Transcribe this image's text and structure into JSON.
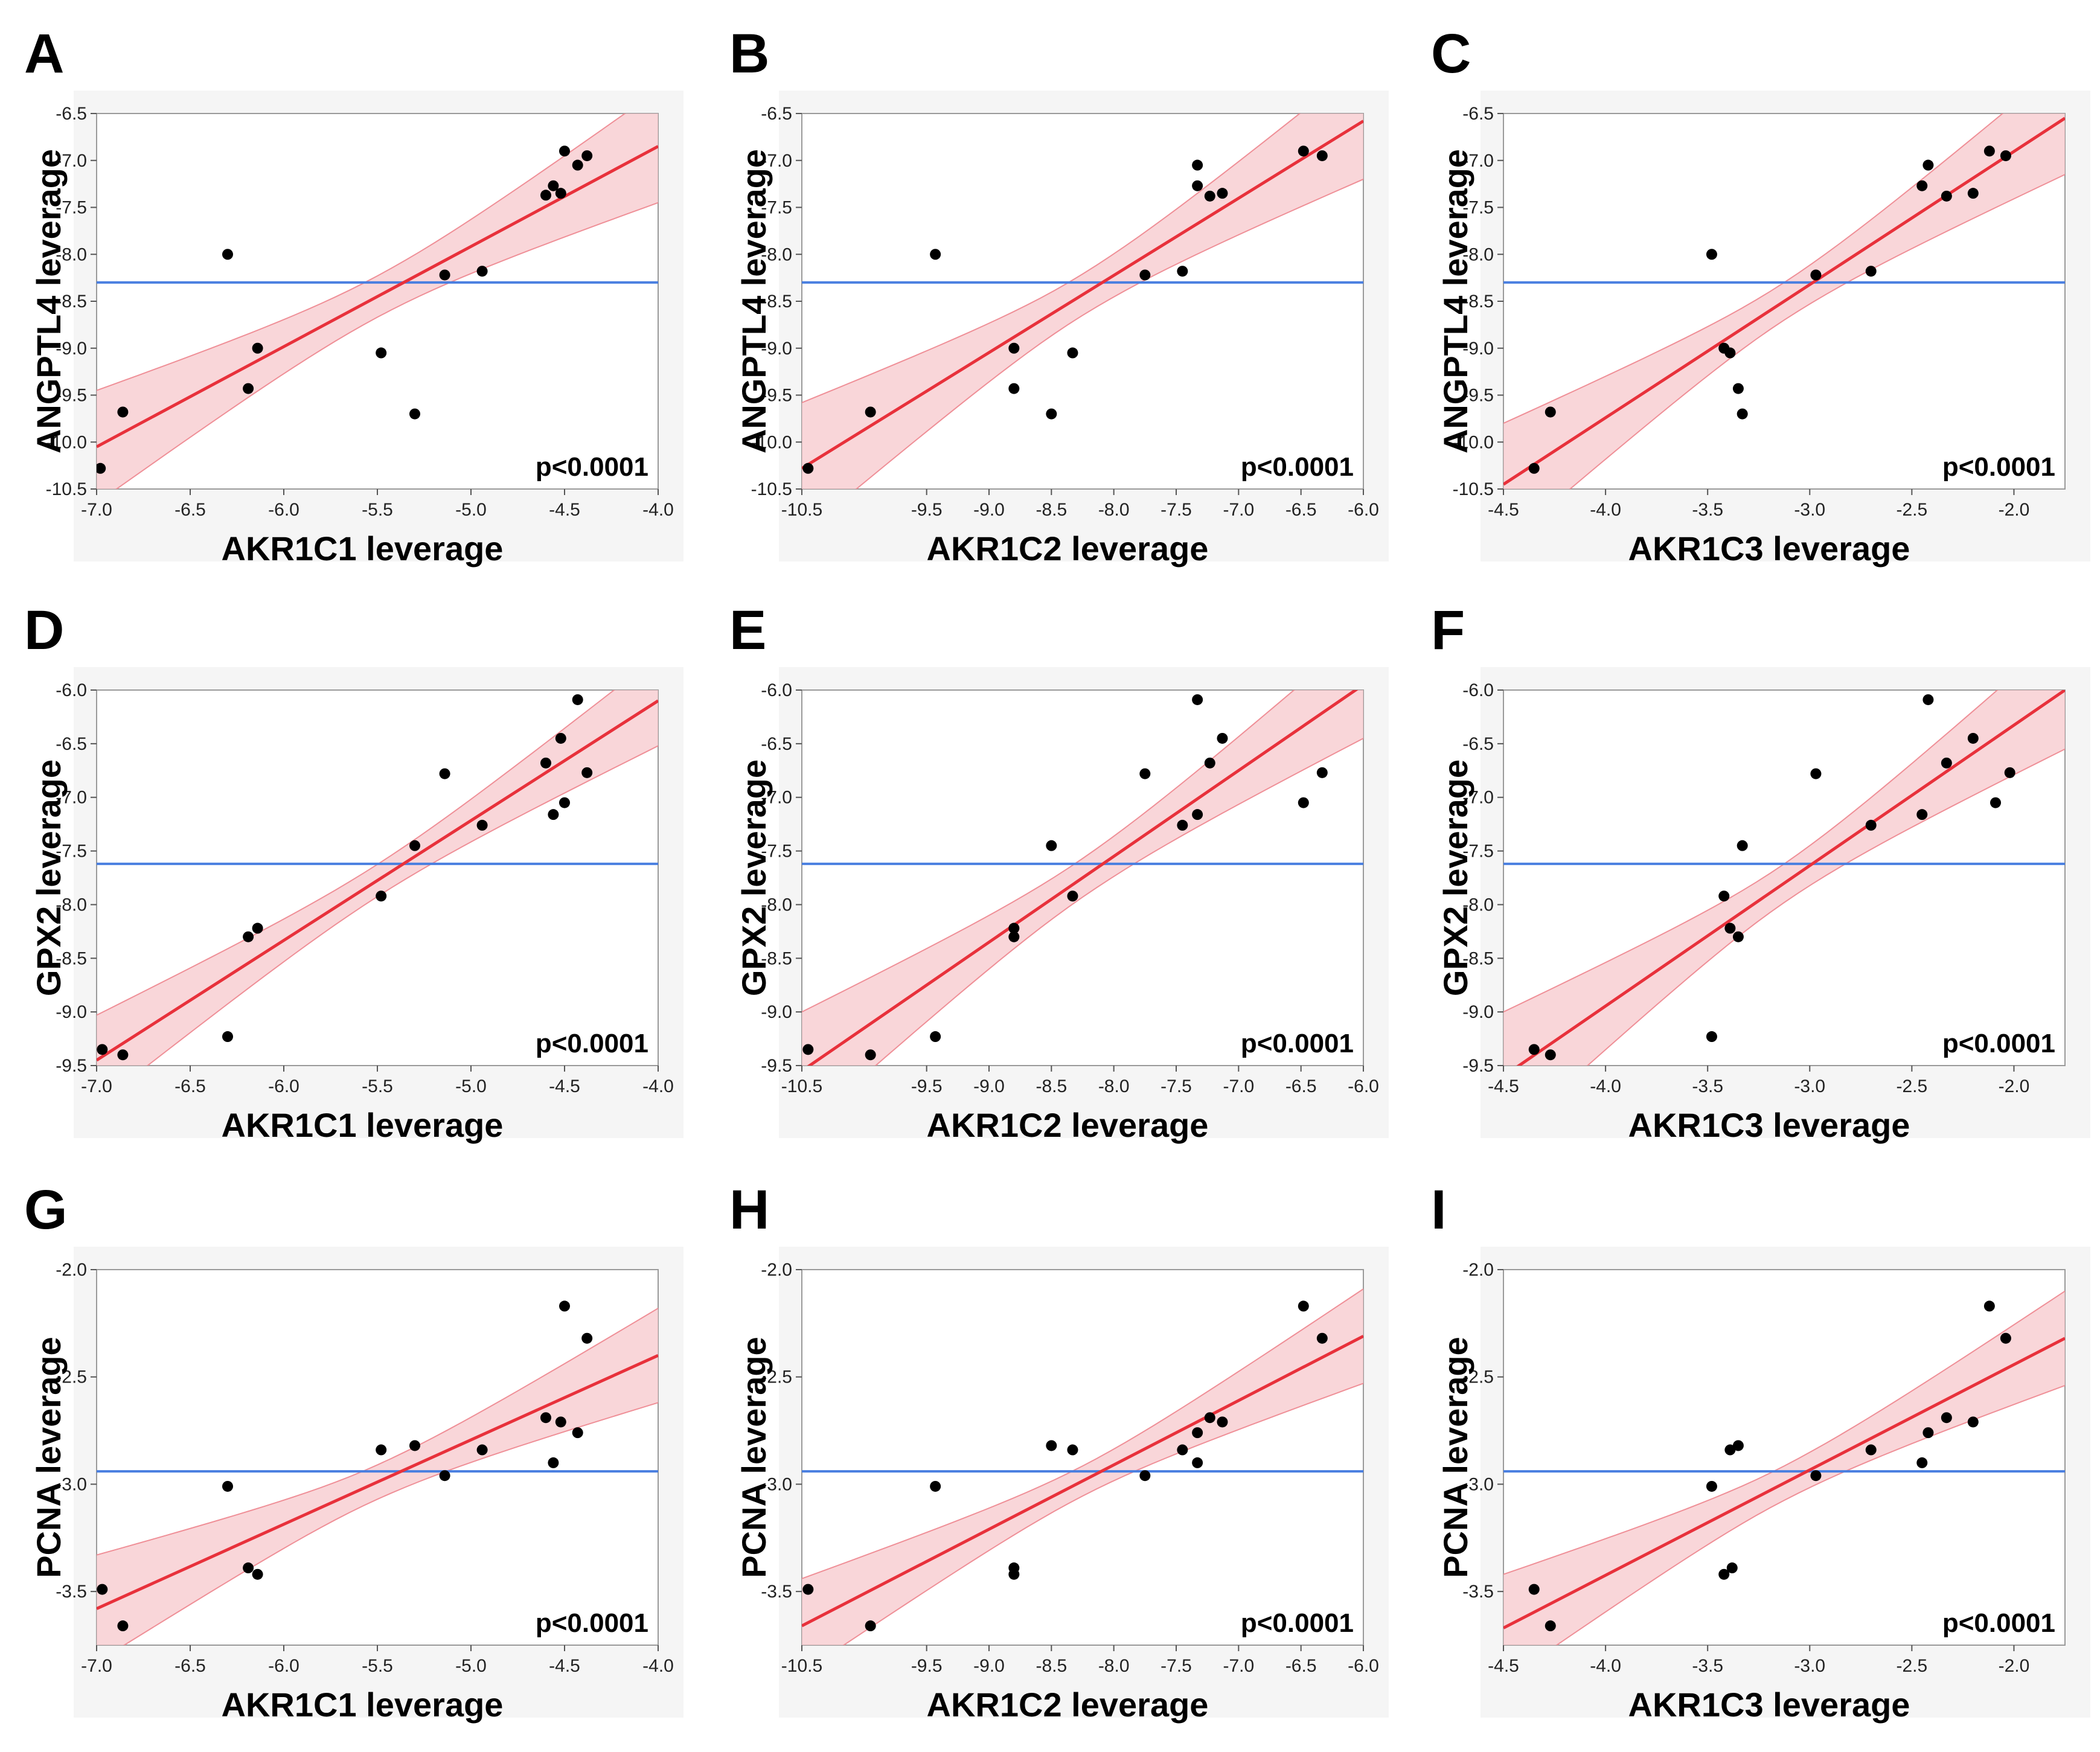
{
  "colors": {
    "fit_line": "#e8313b",
    "confidence_band": "#f7c8cc",
    "confidence_band_edge": "#ef8f97",
    "mean_line": "#4a7fe0",
    "points": "#000000",
    "frame": "#f5f5f5"
  },
  "chart_data": [
    {
      "panel": "A",
      "type": "scatter",
      "xlabel": "AKR1C1 leverage",
      "ylabel": "ANGPTL4 leverage",
      "xlim": [
        -7.0,
        -4.0
      ],
      "ylim": [
        -10.5,
        -6.5
      ],
      "xticks": [
        -7.0,
        -6.5,
        -6.0,
        -5.5,
        -5.0,
        -4.5,
        -4.0
      ],
      "yticks": [
        -6.5,
        -7.0,
        -7.5,
        -8.0,
        -8.5,
        -9.0,
        -9.5,
        -10.0,
        -10.5
      ],
      "x": [
        -6.98,
        -6.86,
        -6.3,
        -6.19,
        -6.14,
        -5.48,
        -5.3,
        -5.14,
        -4.94,
        -4.6,
        -4.56,
        -4.52,
        -4.5,
        -4.43,
        -4.38
      ],
      "y": [
        -10.28,
        -9.68,
        -8.0,
        -9.43,
        -9.0,
        -9.05,
        -9.7,
        -8.22,
        -8.18,
        -7.37,
        -7.27,
        -7.35,
        -6.9,
        -7.05,
        -6.95
      ],
      "fit": [
        [
          -7.0,
          -10.05
        ],
        [
          -4.0,
          -6.85
        ]
      ],
      "band_half": [
        0.6,
        0.22,
        0.6
      ],
      "mean_y": -8.3,
      "pvalue": "p<0.0001"
    },
    {
      "panel": "B",
      "type": "scatter",
      "xlabel": "AKR1C2 leverage",
      "ylabel": "ANGPTL4 leverage",
      "xlim": [
        -10.5,
        -6.0
      ],
      "ylim": [
        -10.5,
        -6.5
      ],
      "xticks": [
        -10.5,
        -9.5,
        -9.0,
        -8.5,
        -8.0,
        -7.5,
        -7.0,
        -6.5,
        -6.0
      ],
      "yticks": [
        -6.5,
        -7.0,
        -7.5,
        -8.0,
        -8.5,
        -9.0,
        -9.5,
        -10.0,
        -10.5
      ],
      "x": [
        -10.45,
        -9.95,
        -9.43,
        -8.8,
        -8.8,
        -8.5,
        -8.33,
        -7.75,
        -7.45,
        -7.33,
        -7.33,
        -7.23,
        -7.13,
        -6.48,
        -6.33
      ],
      "y": [
        -10.28,
        -9.68,
        -8.0,
        -9.0,
        -9.43,
        -9.7,
        -9.05,
        -8.22,
        -8.18,
        -7.05,
        -7.27,
        -7.38,
        -7.35,
        -6.9,
        -6.95
      ],
      "fit": [
        [
          -10.5,
          -10.28
        ],
        [
          -6.0,
          -6.58
        ]
      ],
      "band_half": [
        0.7,
        0.22,
        0.62
      ],
      "mean_y": -8.3,
      "pvalue": "p<0.0001"
    },
    {
      "panel": "C",
      "type": "scatter",
      "xlabel": "AKR1C3 leverage",
      "ylabel": "ANGPTL4  leverage",
      "xlim": [
        -4.5,
        -1.75
      ],
      "ylim": [
        -10.5,
        -6.5
      ],
      "xticks": [
        -4.5,
        -4.0,
        -3.5,
        -3.0,
        -2.5,
        -2.0
      ],
      "yticks": [
        -6.5,
        -7.0,
        -7.5,
        -8.0,
        -8.5,
        -9.0,
        -9.5,
        -10.0,
        -10.5
      ],
      "x": [
        -4.35,
        -4.27,
        -3.48,
        -3.42,
        -3.39,
        -3.35,
        -3.33,
        -2.97,
        -2.7,
        -2.45,
        -2.42,
        -2.33,
        -2.2,
        -2.12,
        -2.04
      ],
      "y": [
        -10.28,
        -9.68,
        -8.0,
        -9.0,
        -9.05,
        -9.43,
        -9.7,
        -8.22,
        -8.18,
        -7.27,
        -7.05,
        -7.38,
        -7.35,
        -6.9,
        -6.95
      ],
      "fit": [
        [
          -4.5,
          -10.45
        ],
        [
          -1.75,
          -6.55
        ]
      ],
      "band_half": [
        0.65,
        0.2,
        0.6
      ],
      "mean_y": -8.3,
      "pvalue": "p<0.0001"
    },
    {
      "panel": "D",
      "type": "scatter",
      "xlabel": "AKR1C1 leverage",
      "ylabel": "GPX2 leverage",
      "xlim": [
        -7.0,
        -4.0
      ],
      "ylim": [
        -9.5,
        -6.0
      ],
      "xticks": [
        -7.0,
        -6.5,
        -6.0,
        -5.5,
        -5.0,
        -4.5,
        -4.0
      ],
      "yticks": [
        -6.0,
        -6.5,
        -7.0,
        -7.5,
        -8.0,
        -8.5,
        -9.0,
        -9.5
      ],
      "x": [
        -6.97,
        -6.86,
        -6.3,
        -6.19,
        -6.14,
        -5.48,
        -5.3,
        -5.14,
        -4.94,
        -4.6,
        -4.56,
        -4.52,
        -4.5,
        -4.43,
        -4.38
      ],
      "y": [
        -9.35,
        -9.4,
        -9.23,
        -8.3,
        -8.22,
        -7.92,
        -7.45,
        -6.78,
        -7.26,
        -6.68,
        -7.16,
        -6.45,
        -7.05,
        -6.09,
        -6.77
      ],
      "fit": [
        [
          -7.0,
          -9.45
        ],
        [
          -4.0,
          -6.1
        ]
      ],
      "band_half": [
        0.42,
        0.15,
        0.42
      ],
      "mean_y": -7.62,
      "pvalue": "p<0.0001"
    },
    {
      "panel": "E",
      "type": "scatter",
      "xlabel": "AKR1C2 leverage",
      "ylabel": "GPX2 leverage",
      "xlim": [
        -10.5,
        -6.0
      ],
      "ylim": [
        -9.5,
        -6.0
      ],
      "xticks": [
        -10.5,
        -9.5,
        -9.0,
        -8.5,
        -8.0,
        -7.5,
        -7.0,
        -6.5,
        -6.0
      ],
      "yticks": [
        -6.0,
        -6.5,
        -7.0,
        -7.5,
        -8.0,
        -8.5,
        -9.0,
        -9.5
      ],
      "x": [
        -10.45,
        -9.95,
        -9.43,
        -8.8,
        -8.8,
        -8.5,
        -8.33,
        -7.75,
        -7.45,
        -7.33,
        -7.33,
        -7.23,
        -7.13,
        -6.48,
        -6.33
      ],
      "y": [
        -9.35,
        -9.4,
        -9.23,
        -8.22,
        -8.3,
        -7.45,
        -7.92,
        -6.78,
        -7.26,
        -6.09,
        -7.16,
        -6.68,
        -6.45,
        -7.05,
        -6.77
      ],
      "fit": [
        [
          -10.5,
          -9.55
        ],
        [
          -6.0,
          -5.95
        ]
      ],
      "band_half": [
        0.55,
        0.18,
        0.5
      ],
      "mean_y": -7.62,
      "pvalue": "p<0.0001"
    },
    {
      "panel": "F",
      "type": "scatter",
      "xlabel": "AKR1C3 leverage",
      "ylabel": "GPX2 leverage",
      "xlim": [
        -4.5,
        -1.75
      ],
      "ylim": [
        -9.5,
        -6.0
      ],
      "xticks": [
        -4.5,
        -4.0,
        -3.5,
        -3.0,
        -2.5,
        -2.0
      ],
      "yticks": [
        -6.0,
        -6.5,
        -7.0,
        -7.5,
        -8.0,
        -8.5,
        -9.0,
        -9.5
      ],
      "x": [
        -4.35,
        -4.27,
        -3.48,
        -3.42,
        -3.39,
        -3.35,
        -3.33,
        -2.97,
        -2.7,
        -2.45,
        -2.42,
        -2.33,
        -2.2,
        -2.09,
        -2.02
      ],
      "y": [
        -9.35,
        -9.4,
        -9.23,
        -7.92,
        -8.22,
        -8.3,
        -7.45,
        -6.78,
        -7.26,
        -7.16,
        -6.09,
        -6.68,
        -6.45,
        -7.05,
        -6.77
      ],
      "fit": [
        [
          -4.5,
          -9.6
        ],
        [
          -1.75,
          -6.0
        ]
      ],
      "band_half": [
        0.6,
        0.18,
        0.55
      ],
      "mean_y": -7.62,
      "pvalue": "p<0.0001"
    },
    {
      "panel": "G",
      "type": "scatter",
      "xlabel": "AKR1C1 leverage",
      "ylabel": "PCNA leverage",
      "xlim": [
        -7.0,
        -4.0
      ],
      "ylim": [
        -3.75,
        -2.0
      ],
      "xticks": [
        -7.0,
        -6.5,
        -6.0,
        -5.5,
        -5.0,
        -4.5,
        -4.0
      ],
      "yticks": [
        -2.0,
        -2.5,
        -3.0,
        -3.5
      ],
      "x": [
        -6.97,
        -6.86,
        -6.3,
        -6.19,
        -6.14,
        -5.48,
        -5.3,
        -5.14,
        -4.94,
        -4.6,
        -4.56,
        -4.52,
        -4.5,
        -4.43,
        -4.38
      ],
      "y": [
        -3.49,
        -3.66,
        -3.01,
        -3.39,
        -3.42,
        -2.84,
        -2.82,
        -2.96,
        -2.84,
        -2.69,
        -2.9,
        -2.71,
        -2.17,
        -2.76,
        -2.32
      ],
      "fit": [
        [
          -7.0,
          -3.58
        ],
        [
          -4.0,
          -2.4
        ]
      ],
      "band_half": [
        0.25,
        0.08,
        0.22
      ],
      "mean_y": -2.94,
      "pvalue": "p<0.0001"
    },
    {
      "panel": "H",
      "type": "scatter",
      "xlabel": "AKR1C2 leverage",
      "ylabel": "PCNA leverage",
      "xlim": [
        -10.5,
        -6.0
      ],
      "ylim": [
        -3.75,
        -2.0
      ],
      "xticks": [
        -10.5,
        -9.5,
        -9.0,
        -8.5,
        -8.0,
        -7.5,
        -7.0,
        -6.5,
        -6.0
      ],
      "yticks": [
        -2.0,
        -2.5,
        -3.0,
        -3.5
      ],
      "x": [
        -10.45,
        -9.95,
        -9.43,
        -8.8,
        -8.8,
        -8.5,
        -8.33,
        -7.75,
        -7.45,
        -7.33,
        -7.33,
        -7.23,
        -7.13,
        -6.48,
        -6.33
      ],
      "y": [
        -3.49,
        -3.66,
        -3.01,
        -3.39,
        -3.42,
        -2.82,
        -2.84,
        -2.96,
        -2.84,
        -2.76,
        -2.9,
        -2.69,
        -2.71,
        -2.17,
        -2.32
      ],
      "fit": [
        [
          -10.5,
          -3.66
        ],
        [
          -6.0,
          -2.31
        ]
      ],
      "band_half": [
        0.22,
        0.07,
        0.22
      ],
      "mean_y": -2.94,
      "pvalue": "p<0.0001"
    },
    {
      "panel": "I",
      "type": "scatter",
      "xlabel": "AKR1C3 leverage",
      "ylabel": "PCNA leverage",
      "xlim": [
        -4.5,
        -1.75
      ],
      "ylim": [
        -3.75,
        -2.0
      ],
      "xticks": [
        -4.5,
        -4.0,
        -3.5,
        -3.0,
        -2.5,
        -2.0
      ],
      "yticks": [
        -2.0,
        -2.5,
        -3.0,
        -3.5
      ],
      "x": [
        -4.35,
        -4.27,
        -3.48,
        -3.42,
        -3.39,
        -3.38,
        -3.35,
        -2.97,
        -2.7,
        -2.45,
        -2.42,
        -2.33,
        -2.2,
        -2.12,
        -2.04
      ],
      "y": [
        -3.49,
        -3.66,
        -3.01,
        -3.42,
        -2.84,
        -3.39,
        -2.82,
        -2.96,
        -2.84,
        -2.9,
        -2.76,
        -2.69,
        -2.71,
        -2.17,
        -2.32
      ],
      "fit": [
        [
          -4.5,
          -3.67
        ],
        [
          -1.75,
          -2.32
        ]
      ],
      "band_half": [
        0.25,
        0.08,
        0.22
      ],
      "mean_y": -2.94,
      "pvalue": "p<0.0001"
    }
  ]
}
